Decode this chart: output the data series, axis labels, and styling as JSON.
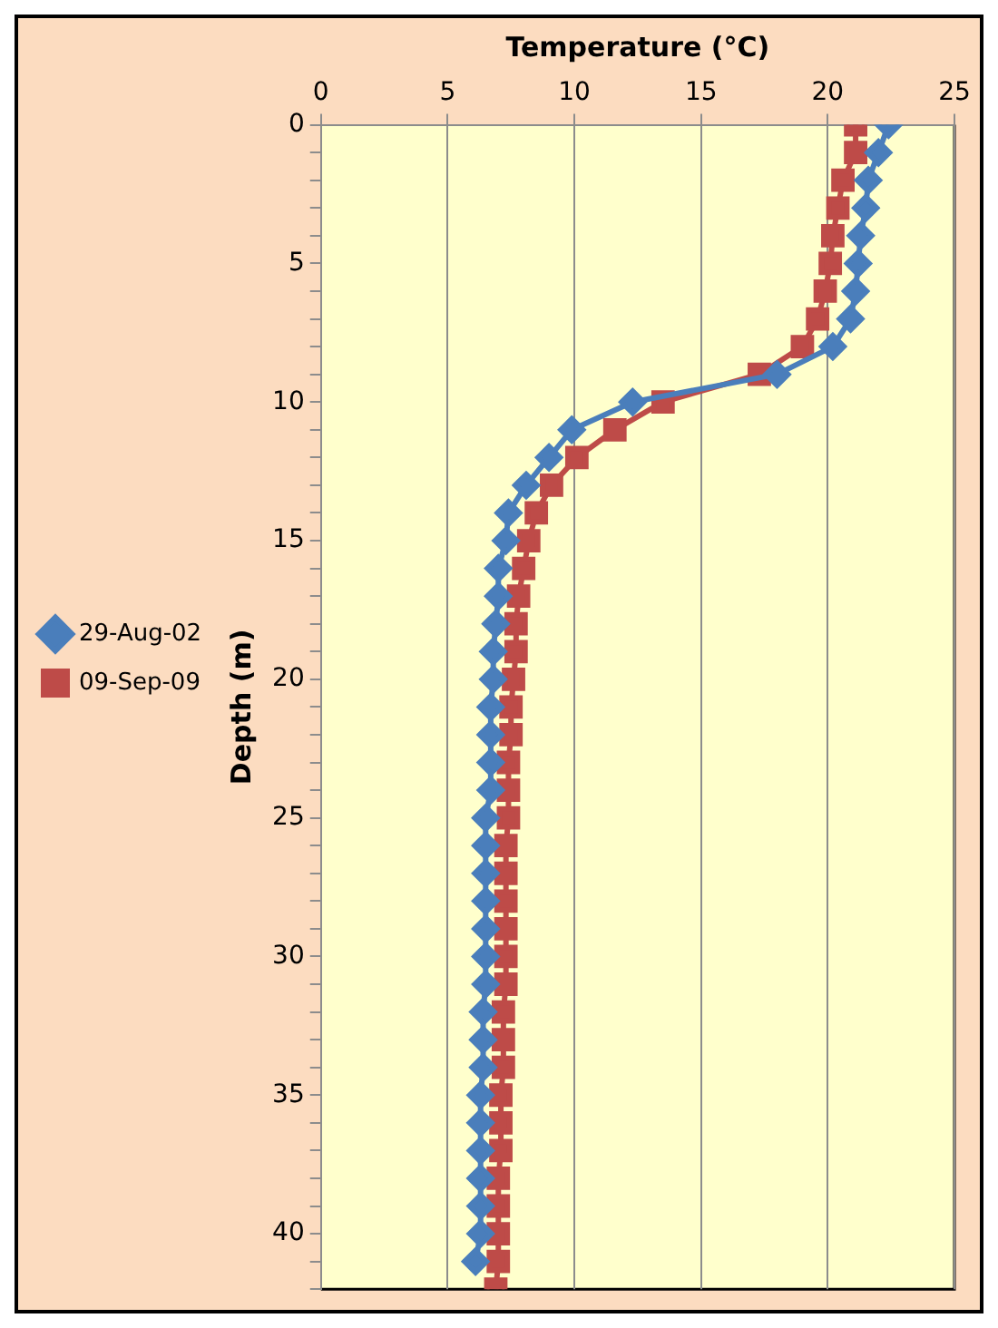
{
  "chart_data": {
    "type": "line",
    "xlabel": "Temperature (°C)",
    "ylabel": "Depth (m)",
    "xlim": [
      0,
      25
    ],
    "xticks": [
      0,
      5,
      10,
      15,
      20,
      25
    ],
    "ylim": [
      42,
      0
    ],
    "yticks": [
      0,
      {
        "value": 1,
        "label": null
      },
      {
        "value": 2,
        "label": null
      },
      {
        "value": 3,
        "label": null
      },
      {
        "value": 4,
        "label": null
      },
      5,
      {
        "value": 6,
        "label": null
      },
      {
        "value": 7,
        "label": null
      },
      {
        "value": 8,
        "label": null
      },
      {
        "value": 9,
        "label": null
      },
      10,
      {
        "value": 11,
        "label": null
      },
      {
        "value": 12,
        "label": null
      },
      {
        "value": 13,
        "label": null
      },
      {
        "value": 14,
        "label": null
      },
      15,
      {
        "value": 16,
        "label": null
      },
      {
        "value": 17,
        "label": null
      },
      {
        "value": 18,
        "label": null
      },
      {
        "value": 19,
        "label": null
      },
      20,
      {
        "value": 21,
        "label": null
      },
      {
        "value": 22,
        "label": null
      },
      {
        "value": 23,
        "label": null
      },
      {
        "value": 24,
        "label": null
      },
      25,
      {
        "value": 26,
        "label": null
      },
      {
        "value": 27,
        "label": null
      },
      {
        "value": 28,
        "label": null
      },
      {
        "value": 29,
        "label": null
      },
      30,
      {
        "value": 31,
        "label": null
      },
      {
        "value": 32,
        "label": null
      },
      {
        "value": 33,
        "label": null
      },
      {
        "value": 34,
        "label": null
      },
      35,
      {
        "value": 36,
        "label": null
      },
      {
        "value": 37,
        "label": null
      },
      {
        "value": 38,
        "label": null
      },
      {
        "value": 39,
        "label": null
      },
      40,
      {
        "value": 41,
        "label": null
      },
      {
        "value": 42,
        "label": null
      }
    ],
    "grid": "x",
    "legend": "left",
    "series": [
      {
        "name": "29-Aug-02",
        "color": "#4a7ebb",
        "marker": "diamond",
        "x": [
          22.4,
          22.0,
          21.6,
          21.5,
          21.3,
          21.2,
          21.1,
          20.9,
          20.2,
          18.0,
          12.3,
          9.9,
          9.0,
          8.1,
          7.4,
          7.3,
          7.0,
          7.0,
          6.9,
          6.8,
          6.8,
          6.7,
          6.7,
          6.7,
          6.7,
          6.5,
          6.5,
          6.5,
          6.5,
          6.5,
          6.5,
          6.5,
          6.4,
          6.4,
          6.4,
          6.3,
          6.3,
          6.3,
          6.3,
          6.3,
          6.3,
          6.1
        ],
        "values": [
          0,
          1,
          2,
          3,
          4,
          5,
          6,
          7,
          8,
          9,
          10,
          11,
          12,
          13,
          14,
          15,
          16,
          17,
          18,
          19,
          20,
          21,
          22,
          23,
          24,
          25,
          26,
          27,
          28,
          29,
          30,
          31,
          32,
          33,
          34,
          35,
          36,
          37,
          38,
          39,
          40,
          41
        ]
      },
      {
        "name": "09-Sep-09",
        "color": "#be4b48",
        "marker": "square",
        "x": [
          21.1,
          21.1,
          20.6,
          20.4,
          20.2,
          20.1,
          19.9,
          19.6,
          19.0,
          17.3,
          13.5,
          11.6,
          10.1,
          9.1,
          8.5,
          8.2,
          8.0,
          7.8,
          7.7,
          7.7,
          7.6,
          7.5,
          7.5,
          7.4,
          7.4,
          7.4,
          7.3,
          7.3,
          7.3,
          7.3,
          7.3,
          7.3,
          7.2,
          7.2,
          7.2,
          7.1,
          7.1,
          7.1,
          7.0,
          7.0,
          7.0,
          7.0,
          6.9
        ],
        "values": [
          0,
          1,
          2,
          3,
          4,
          5,
          6,
          7,
          8,
          9,
          10,
          11,
          12,
          13,
          14,
          15,
          16,
          17,
          18,
          19,
          20,
          21,
          22,
          23,
          24,
          25,
          26,
          27,
          28,
          29,
          30,
          31,
          32,
          33,
          34,
          35,
          36,
          37,
          38,
          39,
          40,
          41,
          42
        ]
      }
    ]
  }
}
